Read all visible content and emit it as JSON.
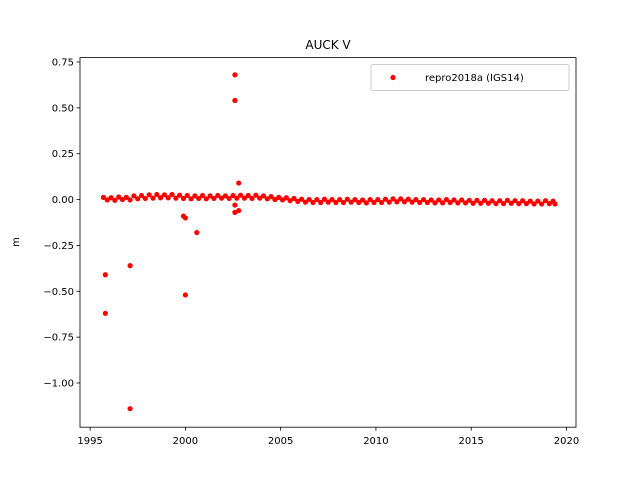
{
  "chart_data": {
    "type": "scatter",
    "title": "AUCK V",
    "ylabel": "m",
    "legend": "upper right",
    "grid": false,
    "xlim": [
      1994.47,
      2020.5
    ],
    "ylim": [
      -1.241,
      0.774
    ],
    "xticks": [
      1995,
      2000,
      2005,
      2010,
      2015,
      2020
    ],
    "yticks": [
      {
        "value": 0.75,
        "label": "0.75"
      },
      {
        "value": 0.5,
        "label": "0.50"
      },
      {
        "value": 0.25,
        "label": "0.25"
      },
      {
        "value": 0,
        "label": "0.00"
      },
      {
        "value": -0.25,
        "label": "−0.25"
      },
      {
        "value": -0.5,
        "label": "−0.50"
      },
      {
        "value": -0.75,
        "label": "−0.75"
      },
      {
        "value": -1,
        "label": "−1.00"
      }
    ],
    "series": [
      {
        "name": "repro2018a (IGS14)",
        "color": "#ff0000",
        "x": [
          1995.7,
          1995.9,
          1996.1,
          1996.3,
          1996.5,
          1996.7,
          1996.9,
          1997.1,
          1997.3,
          1997.5,
          1997.7,
          1997.9,
          1998.1,
          1998.3,
          1998.5,
          1998.7,
          1998.9,
          1999.1,
          1999.3,
          1999.5,
          1999.7,
          1999.9,
          2000.1,
          2000.3,
          2000.5,
          2000.7,
          2000.9,
          2001.1,
          2001.3,
          2001.5,
          2001.7,
          2001.9,
          2002.1,
          2002.3,
          2002.5,
          2002.7,
          2002.9,
          2003.1,
          2003.3,
          2003.5,
          2003.7,
          2003.9,
          2004.1,
          2004.3,
          2004.5,
          2004.7,
          2004.9,
          2005.1,
          2005.3,
          2005.5,
          2005.7,
          2005.9,
          2006.1,
          2006.3,
          2006.5,
          2006.7,
          2006.9,
          2007.1,
          2007.3,
          2007.5,
          2007.7,
          2007.9,
          2008.1,
          2008.3,
          2008.5,
          2008.7,
          2008.9,
          2009.1,
          2009.3,
          2009.5,
          2009.7,
          2009.9,
          2010.1,
          2010.3,
          2010.5,
          2010.7,
          2010.9,
          2011.1,
          2011.3,
          2011.5,
          2011.7,
          2011.9,
          2012.1,
          2012.3,
          2012.5,
          2012.7,
          2012.9,
          2013.1,
          2013.3,
          2013.5,
          2013.7,
          2013.9,
          2014.1,
          2014.3,
          2014.5,
          2014.7,
          2014.9,
          2015.1,
          2015.3,
          2015.5,
          2015.7,
          2015.9,
          2016.1,
          2016.3,
          2016.5,
          2016.7,
          2016.9,
          2017.1,
          2017.3,
          2017.5,
          2017.7,
          2017.9,
          2018.1,
          2018.3,
          2018.5,
          2018.7,
          2018.9,
          2019.1,
          2019.3,
          2019.4,
          1995.8,
          1995.8,
          1997.1,
          1997.1,
          1999.9,
          2000.0,
          2000.0,
          2000.6,
          2002.6,
          2002.6,
          2002.6,
          2002.6,
          2002.8,
          2002.8
        ],
        "values": [
          0.012,
          -0.002,
          0.01,
          -0.004,
          0.014,
          0.0,
          0.012,
          -0.002,
          0.02,
          0.004,
          0.022,
          0.006,
          0.026,
          0.008,
          0.028,
          0.01,
          0.026,
          0.01,
          0.028,
          0.008,
          0.024,
          0.006,
          0.022,
          0.004,
          0.02,
          0.006,
          0.022,
          0.004,
          0.02,
          0.006,
          0.022,
          0.008,
          0.02,
          0.006,
          0.022,
          0.008,
          0.024,
          0.008,
          0.022,
          0.006,
          0.024,
          0.008,
          0.02,
          0.004,
          0.016,
          0.0,
          0.012,
          -0.002,
          0.01,
          -0.006,
          0.006,
          -0.01,
          0.002,
          -0.014,
          0.0,
          -0.016,
          0.0,
          -0.016,
          0.002,
          -0.014,
          0.0,
          -0.016,
          0.0,
          -0.016,
          0.002,
          -0.014,
          0.0,
          -0.016,
          -0.002,
          -0.018,
          0.0,
          -0.016,
          0.0,
          -0.016,
          0.002,
          -0.014,
          0.004,
          -0.012,
          0.004,
          -0.012,
          0.002,
          -0.014,
          0.0,
          -0.016,
          0.0,
          -0.016,
          -0.002,
          -0.018,
          -0.002,
          -0.018,
          0.0,
          -0.016,
          -0.002,
          -0.018,
          -0.002,
          -0.018,
          -0.004,
          -0.02,
          -0.004,
          -0.02,
          -0.004,
          -0.02,
          -0.006,
          -0.022,
          -0.006,
          -0.022,
          -0.004,
          -0.02,
          -0.006,
          -0.022,
          -0.006,
          -0.022,
          -0.008,
          -0.024,
          -0.008,
          -0.024,
          -0.006,
          -0.022,
          -0.008,
          -0.024,
          -0.41,
          -0.62,
          -0.36,
          -1.14,
          -0.09,
          -0.1,
          -0.52,
          -0.18,
          0.68,
          0.54,
          -0.03,
          -0.07,
          0.09,
          -0.06
        ]
      }
    ]
  }
}
